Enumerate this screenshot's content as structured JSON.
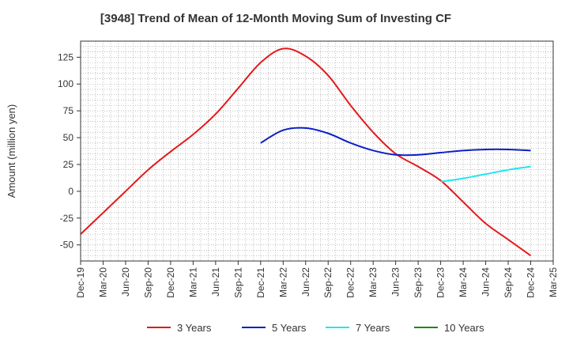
{
  "chart_data": {
    "type": "line",
    "title": "[3948]  Trend of Mean of 12-Month Moving Sum of Investing CF",
    "xlabel": "",
    "ylabel": "Amount (million yen)",
    "ylim": [
      -65,
      140
    ],
    "yticks": [
      125,
      100,
      75,
      50,
      25,
      0,
      -25,
      -50
    ],
    "categories": [
      "Dec-19",
      "Mar-20",
      "Jun-20",
      "Sep-20",
      "Dec-20",
      "Mar-21",
      "Jun-21",
      "Sep-21",
      "Dec-21",
      "Mar-22",
      "Jun-22",
      "Sep-22",
      "Dec-22",
      "Mar-23",
      "Jun-23",
      "Sep-23",
      "Dec-23",
      "Mar-24",
      "Jun-24",
      "Sep-24",
      "Dec-24",
      "Mar-25"
    ],
    "grid": true,
    "legend_position": "bottom",
    "series": [
      {
        "name": "3 Years",
        "color": "#e31a1c",
        "values": [
          -40,
          -20,
          0,
          20,
          37,
          53,
          72,
          96,
          120,
          133,
          126,
          108,
          80,
          55,
          35,
          23,
          10,
          -10,
          -30,
          -45,
          -60,
          null
        ]
      },
      {
        "name": "5 Years",
        "color": "#0a1fc8",
        "values": [
          null,
          null,
          null,
          null,
          null,
          null,
          null,
          null,
          45,
          57,
          59,
          54,
          45,
          38,
          34,
          34,
          36,
          38,
          39,
          39,
          38,
          null
        ]
      },
      {
        "name": "7 Years",
        "color": "#22e5f0",
        "values": [
          null,
          null,
          null,
          null,
          null,
          null,
          null,
          null,
          null,
          null,
          null,
          null,
          null,
          null,
          null,
          null,
          9,
          12,
          16,
          20,
          23,
          null
        ]
      },
      {
        "name": "10 Years",
        "color": "#1a8a1a",
        "values": [
          null,
          null,
          null,
          null,
          null,
          null,
          null,
          null,
          null,
          null,
          null,
          null,
          null,
          null,
          null,
          null,
          null,
          null,
          null,
          null,
          null,
          null
        ]
      }
    ]
  }
}
